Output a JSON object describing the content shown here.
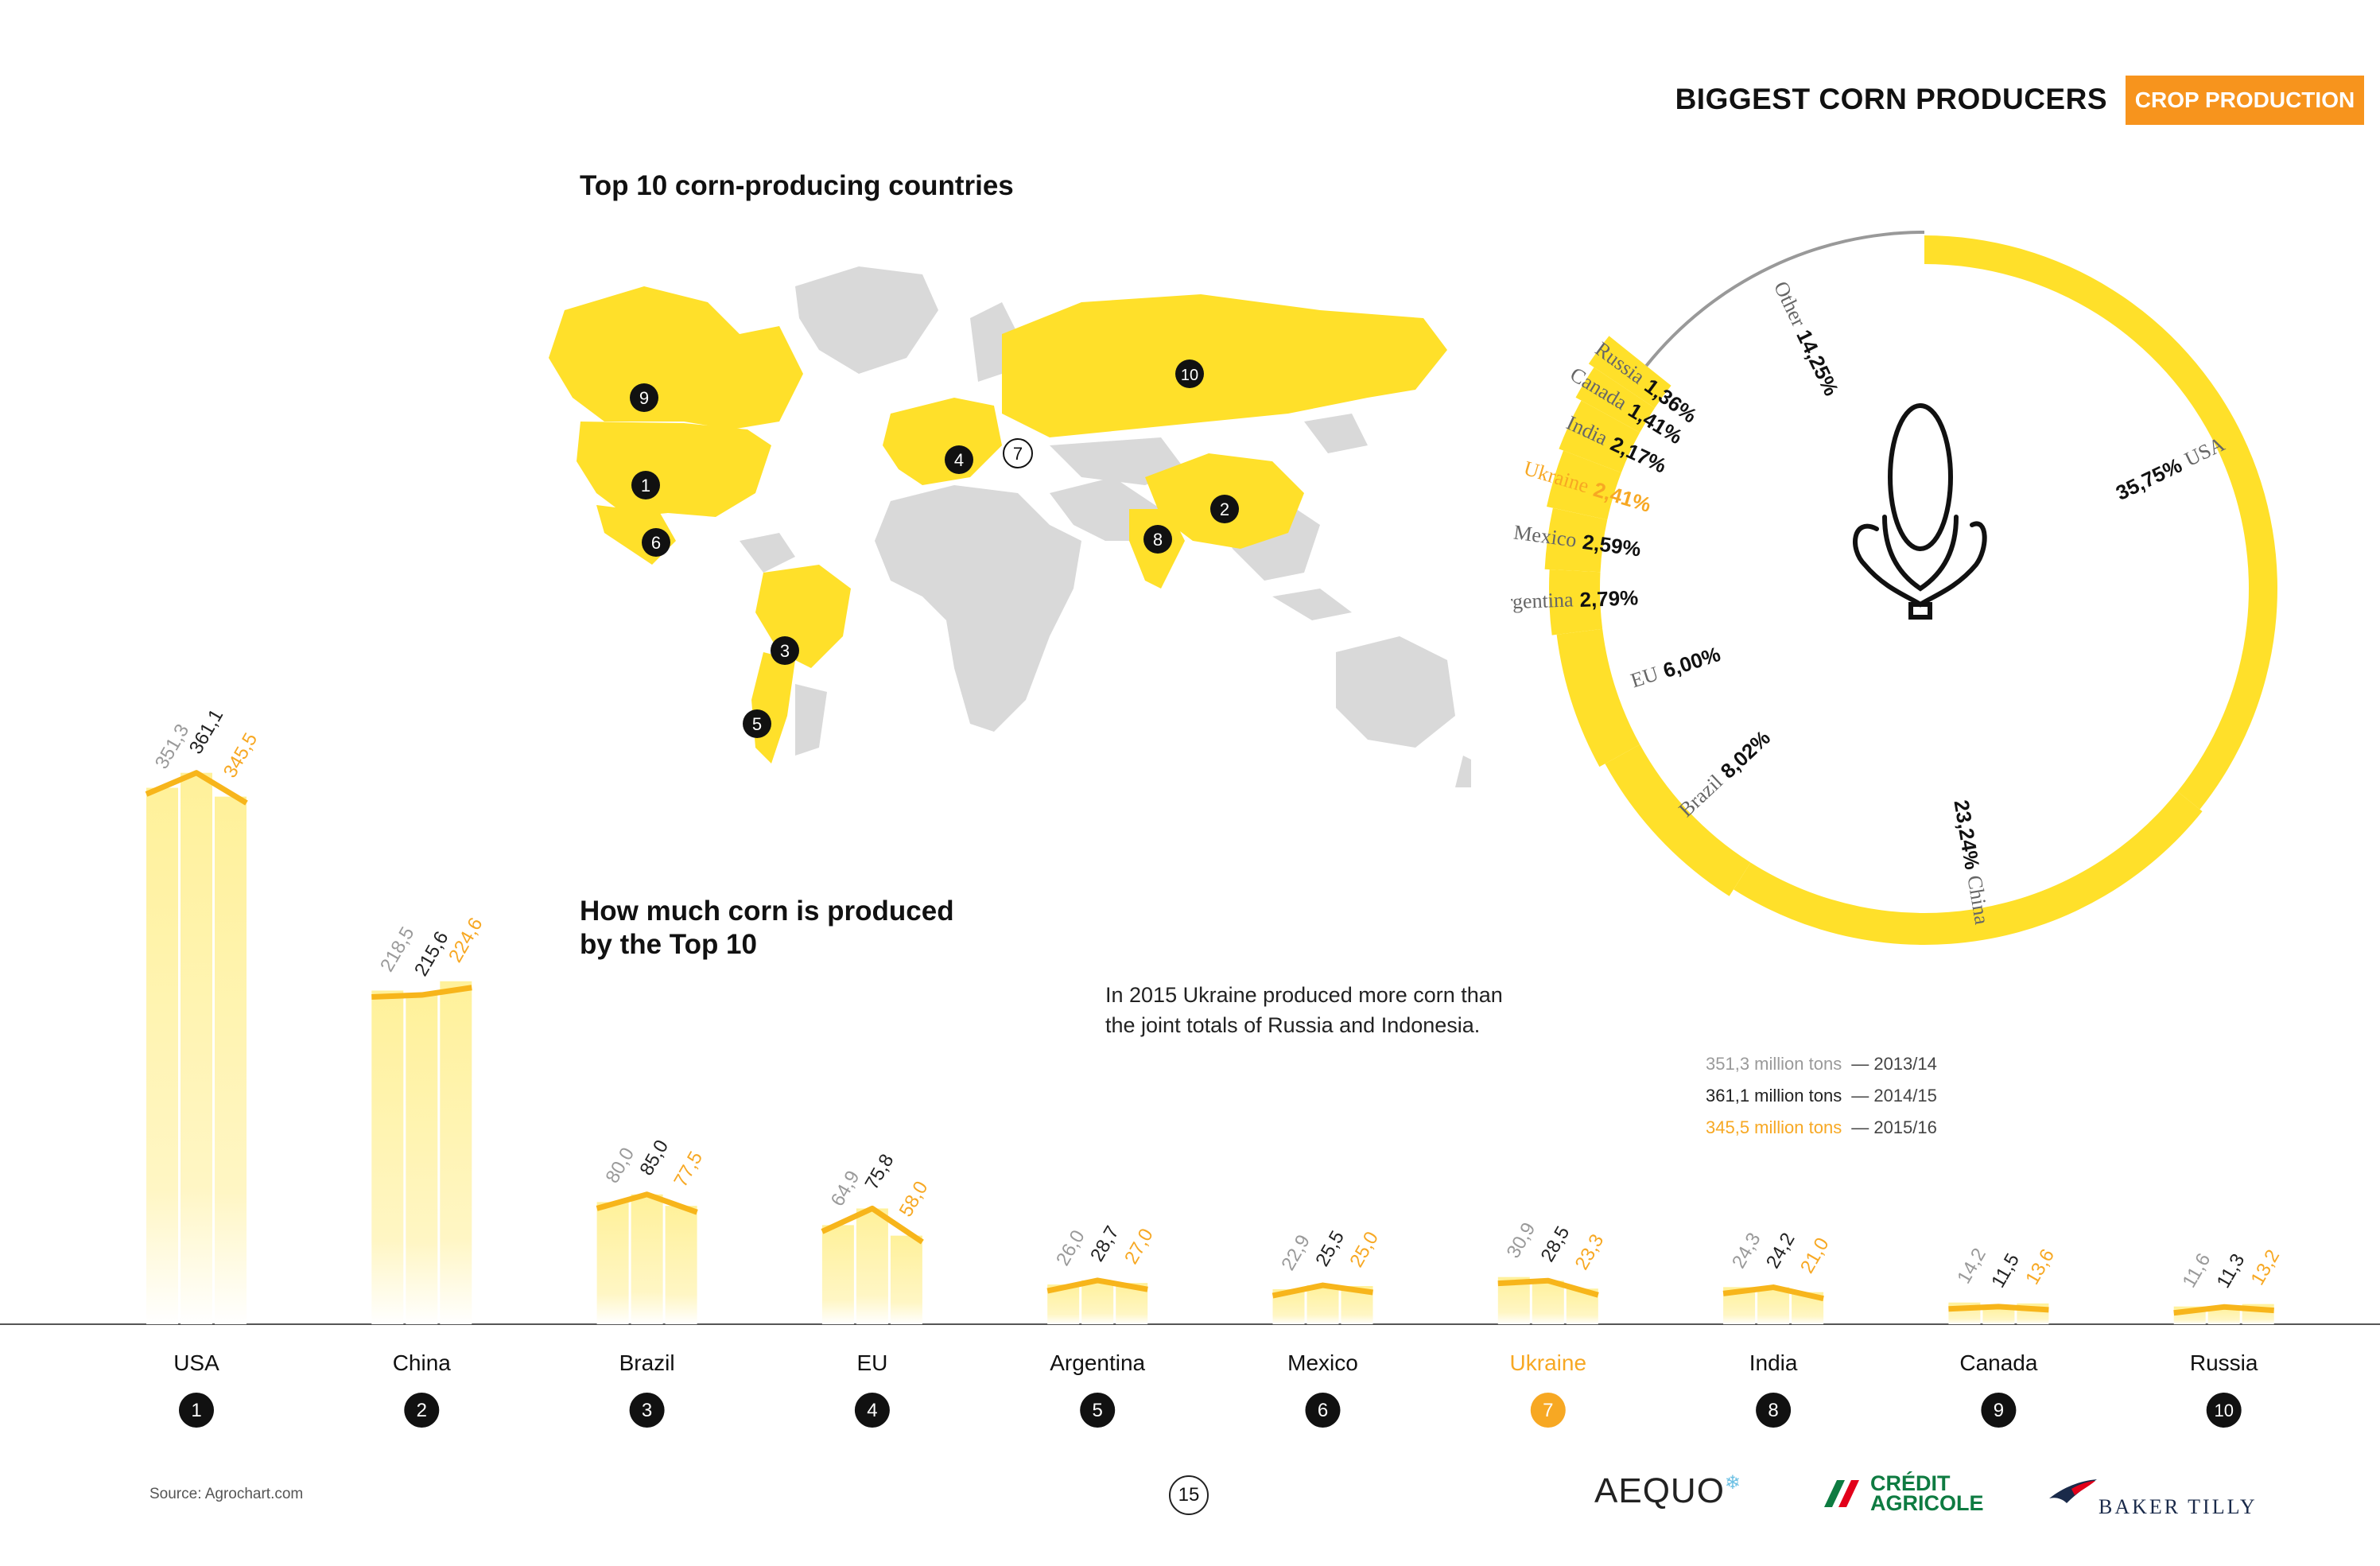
{
  "header": {
    "title": "BIGGEST CORN PRODUCERS",
    "badge": "CROP PRODUCTION"
  },
  "map": {
    "title": "Top 10 corn-producing countries"
  },
  "bars_title": {
    "line1": "How much corn is produced",
    "line2": "by the Top 10"
  },
  "note": {
    "line1": "In 2015 Ukraine produced more corn than",
    "line2": "the joint totals of Russia and Indonesia."
  },
  "legend": [
    {
      "text": "351,3 million tons",
      "year": "— 2013/14",
      "color": "#9a9a9a"
    },
    {
      "text": "361,1 million tons",
      "year": "— 2014/15",
      "color": "#222222"
    },
    {
      "text": "345,5 million tons",
      "year": "— 2015/16",
      "color": "#f7a823"
    }
  ],
  "footer": {
    "source": "Source: Agrochart.com",
    "page": "15"
  },
  "logos": {
    "aequo": "AEQUO",
    "ca_line1": "CRÉDIT",
    "ca_line2": "AGRICOLE",
    "bt": "BAKER TILLY"
  },
  "colors": {
    "accent": "#f7941d",
    "yellow": "#ffe02a",
    "ukraine": "#f7a823",
    "bar_fill": "#fff3a6",
    "bar_top": "#f7b51b"
  },
  "chart_data": [
    {
      "type": "bar",
      "categories": [
        "USA",
        "China",
        "Brazil",
        "EU",
        "Argentina",
        "Mexico",
        "Ukraine",
        "India",
        "Canada",
        "Russia"
      ],
      "ranks": [
        "1",
        "2",
        "3",
        "4",
        "5",
        "6",
        "7",
        "8",
        "9",
        "10"
      ],
      "highlight": "Ukraine",
      "series": [
        {
          "name": "2013/14",
          "values": [
            351.3,
            218.5,
            80.0,
            64.9,
            26.0,
            22.9,
            30.9,
            24.3,
            14.2,
            11.6
          ],
          "labels": [
            "351,3",
            "218,5",
            "80,0",
            "64,9",
            "26,0",
            "22,9",
            "30,9",
            "24,3",
            "14,2",
            "11,6"
          ]
        },
        {
          "name": "2014/15",
          "values": [
            361.1,
            215.6,
            85.0,
            75.8,
            28.7,
            25.5,
            28.5,
            24.2,
            11.5,
            11.3
          ],
          "labels": [
            "361,1",
            "215,6",
            "85,0",
            "75,8",
            "28,7",
            "25,5",
            "28,5",
            "24,2",
            "11,5",
            "11,3"
          ]
        },
        {
          "name": "2015/16",
          "values": [
            345.5,
            224.6,
            77.5,
            58.0,
            27.0,
            25.0,
            23.3,
            21.0,
            13.6,
            13.2
          ],
          "labels": [
            "345,5",
            "224,6",
            "77,5",
            "58,0",
            "27,0",
            "25,0",
            "23,3",
            "21,0",
            "13,6",
            "13,2"
          ]
        }
      ]
    },
    {
      "type": "pie",
      "slices": [
        {
          "name": "USA",
          "value": 35.75,
          "label": "35,75%"
        },
        {
          "name": "China",
          "value": 23.24,
          "label": "23,24%"
        },
        {
          "name": "Brazil",
          "value": 8.02,
          "label": "8,02%"
        },
        {
          "name": "EU",
          "value": 6.0,
          "label": "6,00%"
        },
        {
          "name": "Argentina",
          "value": 2.79,
          "label": "2,79%"
        },
        {
          "name": "Mexico",
          "value": 2.59,
          "label": "2,59%"
        },
        {
          "name": "Ukraine",
          "value": 2.41,
          "label": "2,41%"
        },
        {
          "name": "India",
          "value": 2.17,
          "label": "2,17%"
        },
        {
          "name": "Canada",
          "value": 1.41,
          "label": "1,41%"
        },
        {
          "name": "Russia",
          "value": 1.36,
          "label": "1,36%"
        },
        {
          "name": "Other",
          "value": 14.25,
          "label": "14,25%"
        }
      ]
    }
  ]
}
